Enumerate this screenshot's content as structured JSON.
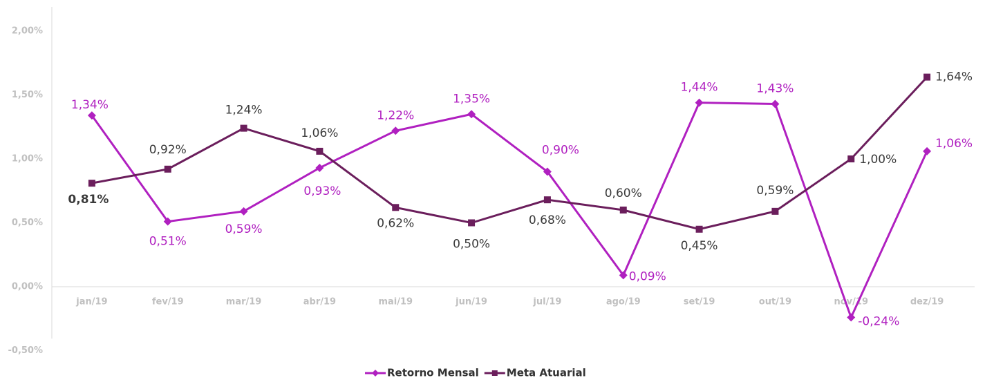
{
  "chart_data": {
    "type": "line",
    "categories": [
      "jan/19",
      "fev/19",
      "mar/19",
      "abr/19",
      "mai/19",
      "jun/19",
      "jul/19",
      "ago/19",
      "set/19",
      "out/19",
      "nov/19",
      "dez/19"
    ],
    "series": [
      {
        "name": "Retorno Mensal",
        "color": "#b020c0",
        "values": [
          1.34,
          0.51,
          0.59,
          0.93,
          1.22,
          1.35,
          0.9,
          0.09,
          1.44,
          1.43,
          -0.24,
          1.06
        ],
        "value_labels": [
          "1,34%",
          "0,51%",
          "0,59%",
          "0,93%",
          "1,22%",
          "1,35%",
          "0,90%",
          "0,09%",
          "1,44%",
          "1,43%",
          "-0,24%",
          "1,06%"
        ]
      },
      {
        "name": "Meta Atuarial",
        "color": "#6b1e5c",
        "values": [
          0.81,
          0.92,
          1.24,
          1.06,
          0.62,
          0.5,
          0.68,
          0.6,
          0.45,
          0.59,
          1.0,
          1.64
        ],
        "value_labels": [
          "0,81%",
          "0,92%",
          "1,24%",
          "1,06%",
          "0,62%",
          "0,50%",
          "0,68%",
          "0,60%",
          "0,45%",
          "0,59%",
          "1,00%",
          "1,64%"
        ]
      }
    ],
    "ylim": [
      -0.5,
      2.0
    ],
    "yticks": [
      {
        "value": -0.5,
        "label": "-0,50%"
      },
      {
        "value": 0,
        "label": "0,00%"
      },
      {
        "value": 0.5,
        "label": "0,50%"
      },
      {
        "value": 1.0,
        "label": "1,00%"
      },
      {
        "value": 1.5,
        "label": "1,50%"
      },
      {
        "value": 2.0,
        "label": "2,00%"
      }
    ],
    "grid": false
  }
}
